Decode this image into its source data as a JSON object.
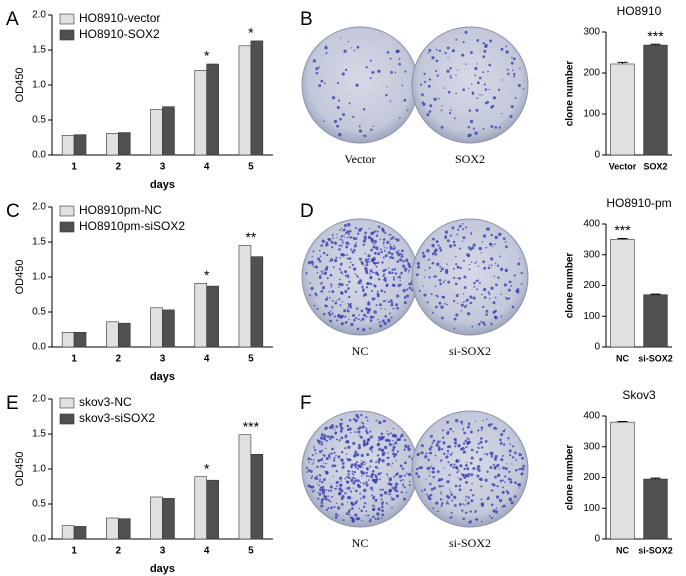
{
  "panels": [
    "A",
    "B",
    "C",
    "D",
    "E",
    "F"
  ],
  "plates": [
    [
      "Vector",
      "SOX2"
    ],
    [
      "NC",
      "si-SOX2"
    ],
    [
      "NC",
      "si-SOX2"
    ]
  ],
  "chart_data": [
    {
      "type": "bar",
      "xlabel": "days",
      "ylabel": "OD450",
      "categories": [
        "1",
        "2",
        "3",
        "4",
        "5"
      ],
      "series": [
        {
          "name": "HO8910-vector",
          "color": "#e0e0e0",
          "values": [
            0.28,
            0.31,
            0.65,
            1.21,
            1.56
          ]
        },
        {
          "name": "HO8910-SOX2",
          "color": "#505050",
          "values": [
            0.29,
            0.32,
            0.69,
            1.3,
            1.63
          ]
        }
      ],
      "annotations": [
        null,
        null,
        null,
        "*",
        "*"
      ],
      "ylim": [
        0,
        2.0
      ],
      "yticks": [
        {
          "value": 0,
          "label": "0.0"
        },
        0.5,
        {
          "value": 1,
          "label": "1.0"
        },
        1.5,
        {
          "value": 2,
          "label": "2.0"
        }
      ]
    },
    {
      "type": "bar",
      "title": "HO8910",
      "ylabel": "clone number",
      "categories": [
        "Vector",
        "SOX2"
      ],
      "values": [
        222,
        268
      ],
      "errors": [
        4,
        2
      ],
      "colors": [
        "#e0e0e0",
        "#505050"
      ],
      "annotations": [
        null,
        "***"
      ],
      "ylim": [
        0,
        300
      ],
      "yticks": [
        0,
        100,
        200,
        300
      ]
    },
    {
      "type": "bar",
      "xlabel": "days",
      "ylabel": "OD450",
      "categories": [
        "1",
        "2",
        "3",
        "4",
        "5"
      ],
      "series": [
        {
          "name": "HO8910pm-NC",
          "color": "#e0e0e0",
          "values": [
            0.21,
            0.36,
            0.56,
            0.91,
            1.45
          ]
        },
        {
          "name": "HO8910pm-siSOX2",
          "color": "#505050",
          "values": [
            0.21,
            0.34,
            0.53,
            0.87,
            1.29
          ]
        }
      ],
      "annotations": [
        null,
        null,
        null,
        "*",
        "**"
      ],
      "ylim": [
        0,
        2.0
      ],
      "yticks": [
        {
          "value": 0,
          "label": "0.0"
        },
        0.5,
        {
          "value": 1,
          "label": "1.0"
        },
        1.5,
        {
          "value": 2,
          "label": "2.0"
        }
      ]
    },
    {
      "type": "bar",
      "title": "HO8910-pm",
      "ylabel": "clone number",
      "categories": [
        "NC",
        "si-SOX2"
      ],
      "values": [
        350,
        170
      ],
      "errors": [
        3,
        2
      ],
      "colors": [
        "#e0e0e0",
        "#505050"
      ],
      "annotations": [
        "***",
        null
      ],
      "ylim": [
        0,
        400
      ],
      "yticks": [
        0,
        100,
        200,
        300,
        400
      ]
    },
    {
      "type": "bar",
      "xlabel": "days",
      "ylabel": "OD450",
      "categories": [
        "1",
        "2",
        "3",
        "4",
        "5"
      ],
      "series": [
        {
          "name": "skov3-NC",
          "color": "#e0e0e0",
          "values": [
            0.19,
            0.3,
            0.6,
            0.89,
            1.49
          ]
        },
        {
          "name": "skov3-siSOX2",
          "color": "#505050",
          "values": [
            0.18,
            0.29,
            0.58,
            0.84,
            1.21
          ]
        }
      ],
      "annotations": [
        null,
        null,
        null,
        "*",
        "***"
      ],
      "ylim": [
        0,
        2.0
      ],
      "yticks": [
        {
          "value": 0,
          "label": "0.0"
        },
        0.5,
        {
          "value": 1,
          "label": "1.0"
        },
        1.5,
        {
          "value": 2,
          "label": "2.0"
        }
      ]
    },
    {
      "type": "bar",
      "title": "Skov3",
      "ylabel": "clone number",
      "categories": [
        "NC",
        "si-SOX2"
      ],
      "values": [
        380,
        195
      ],
      "errors": [
        2,
        3
      ],
      "colors": [
        "#e0e0e0",
        "#505050"
      ],
      "annotations": [
        null,
        null
      ],
      "ylim": [
        0,
        400
      ],
      "yticks": [
        0,
        100,
        200,
        300,
        400
      ]
    }
  ]
}
